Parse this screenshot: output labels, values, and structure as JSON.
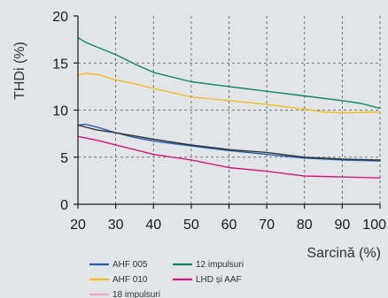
{
  "chart_data": {
    "type": "line",
    "title": "",
    "xlabel": "Sarcină (%)",
    "ylabel": "THDi (%)",
    "xlim": [
      20,
      100
    ],
    "ylim": [
      0,
      20
    ],
    "xticks": [
      20,
      30,
      40,
      50,
      60,
      70,
      80,
      90,
      100
    ],
    "yticks": [
      0,
      5,
      10,
      15,
      20
    ],
    "grid": true,
    "legend_position": "bottom",
    "series": [
      {
        "name": "AHF 005",
        "color": "#1f5fae",
        "x": [
          20,
          22,
          25,
          30,
          35,
          40,
          50,
          60,
          70,
          80,
          90,
          100
        ],
        "y": [
          8.4,
          8.5,
          8.2,
          7.6,
          7.1,
          6.7,
          6.2,
          5.7,
          5.3,
          4.9,
          4.7,
          4.6
        ]
      },
      {
        "name": "AHF 010",
        "color": "#f5b921",
        "x": [
          20,
          22,
          25,
          30,
          35,
          40,
          50,
          60,
          70,
          80,
          85,
          90,
          100
        ],
        "y": [
          13.7,
          13.9,
          13.8,
          13.2,
          12.8,
          12.3,
          11.4,
          11.0,
          10.6,
          10.1,
          9.8,
          9.7,
          9.8
        ]
      },
      {
        "name": "18 impulsuri",
        "color": "#f3a3bd",
        "x": [
          20
        ],
        "y": [
          7.0
        ]
      },
      {
        "name": "12 impulsuri",
        "color": "#11855e",
        "x": [
          20,
          22,
          25,
          30,
          35,
          40,
          50,
          60,
          70,
          80,
          90,
          95,
          100
        ],
        "y": [
          17.7,
          17.2,
          16.7,
          15.9,
          14.9,
          14.0,
          13.0,
          12.5,
          12.0,
          11.5,
          11.0,
          10.7,
          10.2
        ]
      },
      {
        "name": "LHD și AAF",
        "color": "#d6157e",
        "x": [
          20,
          25,
          30,
          35,
          40,
          50,
          60,
          70,
          80,
          90,
          100
        ],
        "y": [
          7.2,
          6.8,
          6.3,
          5.8,
          5.3,
          4.7,
          3.9,
          3.5,
          3.0,
          2.9,
          2.8
        ]
      },
      {
        "name": "",
        "color": "#333333",
        "x": [
          20,
          25,
          30,
          40,
          50,
          60,
          70,
          80,
          90,
          100
        ],
        "y": [
          8.4,
          7.9,
          7.6,
          6.9,
          6.3,
          5.8,
          5.5,
          5.0,
          4.8,
          4.7
        ]
      }
    ]
  }
}
